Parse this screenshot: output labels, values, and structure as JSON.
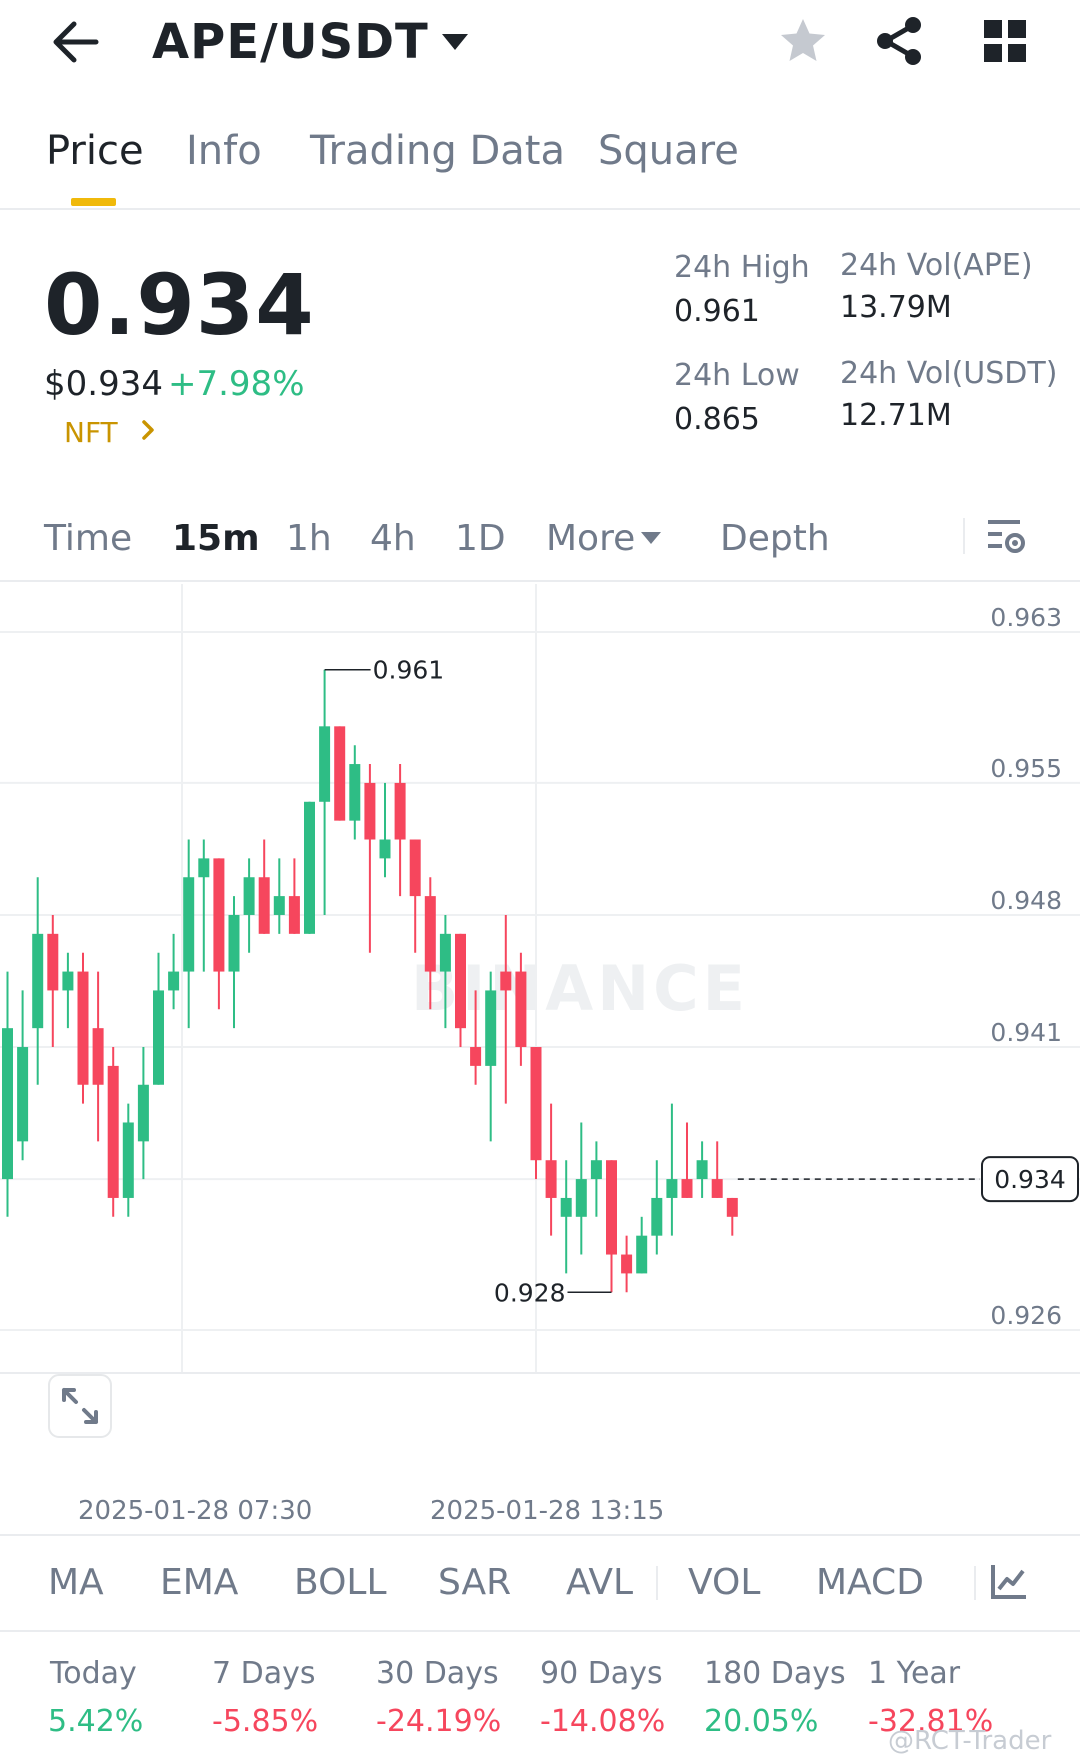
{
  "header": {
    "title": "APE/USDT"
  },
  "tabs": [
    {
      "label": "Price",
      "active": true
    },
    {
      "label": "Info",
      "active": false
    },
    {
      "label": "Trading Data",
      "active": false
    },
    {
      "label": "Square",
      "active": false
    }
  ],
  "price": {
    "last": "0.934",
    "usd": "$0.934",
    "change": "+7.98%",
    "tag": "NFT"
  },
  "stats": {
    "high_label": "24h High",
    "high_value": "0.961",
    "low_label": "24h Low",
    "low_value": "0.865",
    "vol_base_label": "24h Vol(APE)",
    "vol_base_value": "13.79M",
    "vol_quote_label": "24h Vol(USDT)",
    "vol_quote_value": "12.71M"
  },
  "intervals": {
    "time": "Time",
    "m15": "15m",
    "h1": "1h",
    "h4": "4h",
    "d1": "1D",
    "more": "More",
    "depth": "Depth",
    "active": "15m"
  },
  "chart": {
    "watermark": "BINANCE",
    "y_ticks": [
      "0.963",
      "0.955",
      "0.948",
      "0.941",
      "0.934",
      "0.926"
    ],
    "high_label": "0.961",
    "low_label": "0.928",
    "current_price_label": "0.934",
    "x_labels": [
      "2025-01-28 07:30",
      "2025-01-28 13:15"
    ]
  },
  "indicators": [
    "MA",
    "EMA",
    "BOLL",
    "SAR",
    "AVL",
    "VOL",
    "MACD"
  ],
  "performance": [
    {
      "label": "Today",
      "value": "5.42%",
      "trend": "up"
    },
    {
      "label": "7 Days",
      "value": "-5.85%",
      "trend": "down"
    },
    {
      "label": "30 Days",
      "value": "-24.19%",
      "trend": "down"
    },
    {
      "label": "90 Days",
      "value": "-14.08%",
      "trend": "down"
    },
    {
      "label": "180 Days",
      "value": "20.05%",
      "trend": "up"
    },
    {
      "label": "1 Year",
      "value": "-32.81%",
      "trend": "down"
    }
  ],
  "watermark_text": "@RCT-Trader",
  "colors": {
    "up": "#2ebd85",
    "down": "#f6465d",
    "accent": "#f0b90b",
    "text": "#1e2329",
    "muted": "#707a8a"
  },
  "icons": {
    "back": "arrow-left-icon",
    "caret": "caret-down-icon",
    "favorite": "star-icon",
    "share": "share-icon",
    "more": "grid-icon",
    "chart_settings": "chart-settings-icon",
    "expand": "expand-icon",
    "indicator_settings": "indicator-chart-icon"
  },
  "chart_data": {
    "type": "candlestick",
    "title": "",
    "interval": "15m",
    "ylim": [
      0.926,
      0.963
    ],
    "y_ticks": [
      0.963,
      0.955,
      0.948,
      0.941,
      0.934,
      0.926
    ],
    "grid": true,
    "x_labels": [
      "2025-01-28 07:30",
      "2025-01-28 13:15"
    ],
    "high_marker": 0.961,
    "low_marker": 0.928,
    "last_price": 0.934,
    "candles": [
      {
        "o": 0.934,
        "h": 0.945,
        "l": 0.932,
        "c": 0.942
      },
      {
        "o": 0.936,
        "h": 0.944,
        "l": 0.935,
        "c": 0.941
      },
      {
        "o": 0.942,
        "h": 0.95,
        "l": 0.939,
        "c": 0.947
      },
      {
        "o": 0.947,
        "h": 0.948,
        "l": 0.941,
        "c": 0.944
      },
      {
        "o": 0.944,
        "h": 0.946,
        "l": 0.942,
        "c": 0.945
      },
      {
        "o": 0.945,
        "h": 0.946,
        "l": 0.938,
        "c": 0.939
      },
      {
        "o": 0.942,
        "h": 0.945,
        "l": 0.936,
        "c": 0.939
      },
      {
        "o": 0.94,
        "h": 0.941,
        "l": 0.932,
        "c": 0.933
      },
      {
        "o": 0.933,
        "h": 0.938,
        "l": 0.932,
        "c": 0.937
      },
      {
        "o": 0.936,
        "h": 0.941,
        "l": 0.934,
        "c": 0.939
      },
      {
        "o": 0.939,
        "h": 0.946,
        "l": 0.939,
        "c": 0.944
      },
      {
        "o": 0.944,
        "h": 0.947,
        "l": 0.943,
        "c": 0.945
      },
      {
        "o": 0.945,
        "h": 0.952,
        "l": 0.942,
        "c": 0.95
      },
      {
        "o": 0.95,
        "h": 0.952,
        "l": 0.945,
        "c": 0.951
      },
      {
        "o": 0.951,
        "h": 0.951,
        "l": 0.943,
        "c": 0.945
      },
      {
        "o": 0.945,
        "h": 0.949,
        "l": 0.942,
        "c": 0.948
      },
      {
        "o": 0.948,
        "h": 0.951,
        "l": 0.946,
        "c": 0.95
      },
      {
        "o": 0.95,
        "h": 0.952,
        "l": 0.947,
        "c": 0.947
      },
      {
        "o": 0.948,
        "h": 0.951,
        "l": 0.947,
        "c": 0.949
      },
      {
        "o": 0.949,
        "h": 0.951,
        "l": 0.947,
        "c": 0.947
      },
      {
        "o": 0.947,
        "h": 0.954,
        "l": 0.947,
        "c": 0.954
      },
      {
        "o": 0.954,
        "h": 0.961,
        "l": 0.948,
        "c": 0.958
      },
      {
        "o": 0.958,
        "h": 0.958,
        "l": 0.953,
        "c": 0.953
      },
      {
        "o": 0.953,
        "h": 0.957,
        "l": 0.952,
        "c": 0.956
      },
      {
        "o": 0.955,
        "h": 0.956,
        "l": 0.946,
        "c": 0.952
      },
      {
        "o": 0.951,
        "h": 0.955,
        "l": 0.95,
        "c": 0.952
      },
      {
        "o": 0.955,
        "h": 0.956,
        "l": 0.949,
        "c": 0.952
      },
      {
        "o": 0.952,
        "h": 0.952,
        "l": 0.946,
        "c": 0.949
      },
      {
        "o": 0.949,
        "h": 0.95,
        "l": 0.943,
        "c": 0.945
      },
      {
        "o": 0.945,
        "h": 0.948,
        "l": 0.942,
        "c": 0.947
      },
      {
        "o": 0.947,
        "h": 0.947,
        "l": 0.941,
        "c": 0.942
      },
      {
        "o": 0.941,
        "h": 0.944,
        "l": 0.939,
        "c": 0.94
      },
      {
        "o": 0.94,
        "h": 0.945,
        "l": 0.936,
        "c": 0.944
      },
      {
        "o": 0.945,
        "h": 0.948,
        "l": 0.938,
        "c": 0.944
      },
      {
        "o": 0.945,
        "h": 0.946,
        "l": 0.94,
        "c": 0.941
      },
      {
        "o": 0.941,
        "h": 0.941,
        "l": 0.934,
        "c": 0.935
      },
      {
        "o": 0.935,
        "h": 0.938,
        "l": 0.931,
        "c": 0.933
      },
      {
        "o": 0.932,
        "h": 0.935,
        "l": 0.929,
        "c": 0.933
      },
      {
        "o": 0.932,
        "h": 0.937,
        "l": 0.93,
        "c": 0.934
      },
      {
        "o": 0.934,
        "h": 0.936,
        "l": 0.932,
        "c": 0.935
      },
      {
        "o": 0.935,
        "h": 0.935,
        "l": 0.928,
        "c": 0.93
      },
      {
        "o": 0.93,
        "h": 0.931,
        "l": 0.928,
        "c": 0.929
      },
      {
        "o": 0.929,
        "h": 0.932,
        "l": 0.929,
        "c": 0.931
      },
      {
        "o": 0.931,
        "h": 0.935,
        "l": 0.93,
        "c": 0.933
      },
      {
        "o": 0.933,
        "h": 0.938,
        "l": 0.931,
        "c": 0.934
      },
      {
        "o": 0.934,
        "h": 0.937,
        "l": 0.933,
        "c": 0.933
      },
      {
        "o": 0.934,
        "h": 0.936,
        "l": 0.933,
        "c": 0.935
      },
      {
        "o": 0.934,
        "h": 0.936,
        "l": 0.933,
        "c": 0.933
      },
      {
        "o": 0.933,
        "h": 0.933,
        "l": 0.931,
        "c": 0.932
      }
    ]
  }
}
